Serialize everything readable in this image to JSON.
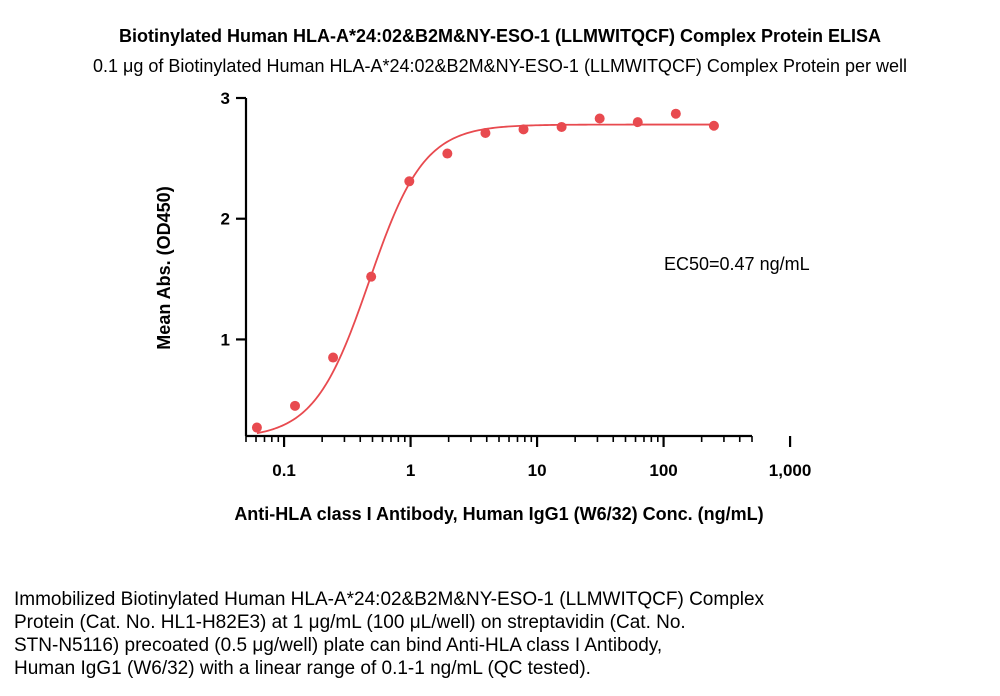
{
  "chart_data": {
    "type": "scatter",
    "title": "Biotinylated Human HLA-A*24:02&B2M&NY-ESO-1 (LLMWITQCF) Complex Protein ELISA",
    "subtitle": "0.1 μg of Biotinylated Human HLA-A*24:02&B2M&NY-ESO-1 (LLMWITQCF) Complex Protein per well",
    "xlabel": "Anti-HLA class I Antibody, Human IgG1 (W6/32) Conc. (ng/mL)",
    "ylabel": "Mean Abs. (OD450)",
    "xscale": "log",
    "xlim": [
      0.05,
      500
    ],
    "ylim": [
      0.2,
      3
    ],
    "xticks": [
      0.1,
      1,
      10,
      100,
      1000
    ],
    "xtick_labels": [
      "0.1",
      "1",
      "10",
      "100",
      "1,000"
    ],
    "yticks": [
      1,
      2,
      3
    ],
    "ytick_labels": [
      "1",
      "2",
      "3"
    ],
    "grid": false,
    "color": "#e84a4f",
    "series": [
      {
        "x": [
          0.061,
          0.122,
          0.244,
          0.488,
          0.977,
          1.953,
          3.906,
          7.813,
          15.625,
          31.25,
          62.5,
          125,
          250
        ],
        "y": [
          0.27,
          0.45,
          0.85,
          1.52,
          2.31,
          2.54,
          2.71,
          2.74,
          2.76,
          2.83,
          2.8,
          2.87,
          2.77
        ]
      }
    ],
    "fit": {
      "type": "4PL",
      "bottom": 0.18,
      "top": 2.78,
      "ec50": 0.47,
      "hill": 2.0
    },
    "annotations": [
      {
        "text": "EC50=0.47 ng/mL"
      }
    ]
  },
  "caption_lines": [
    "Immobilized Biotinylated Human HLA-A*24:02&B2M&NY-ESO-1 (LLMWITQCF) Complex",
    "Protein (Cat. No. HL1-H82E3) at 1 μg/mL (100 μL/well) on streptavidin (Cat. No.",
    "STN-N5116) precoated (0.5 μg/well) plate can bind Anti-HLA class I Antibody,",
    "Human IgG1 (W6/32) with a linear range of 0.1-1 ng/mL (QC tested)."
  ]
}
